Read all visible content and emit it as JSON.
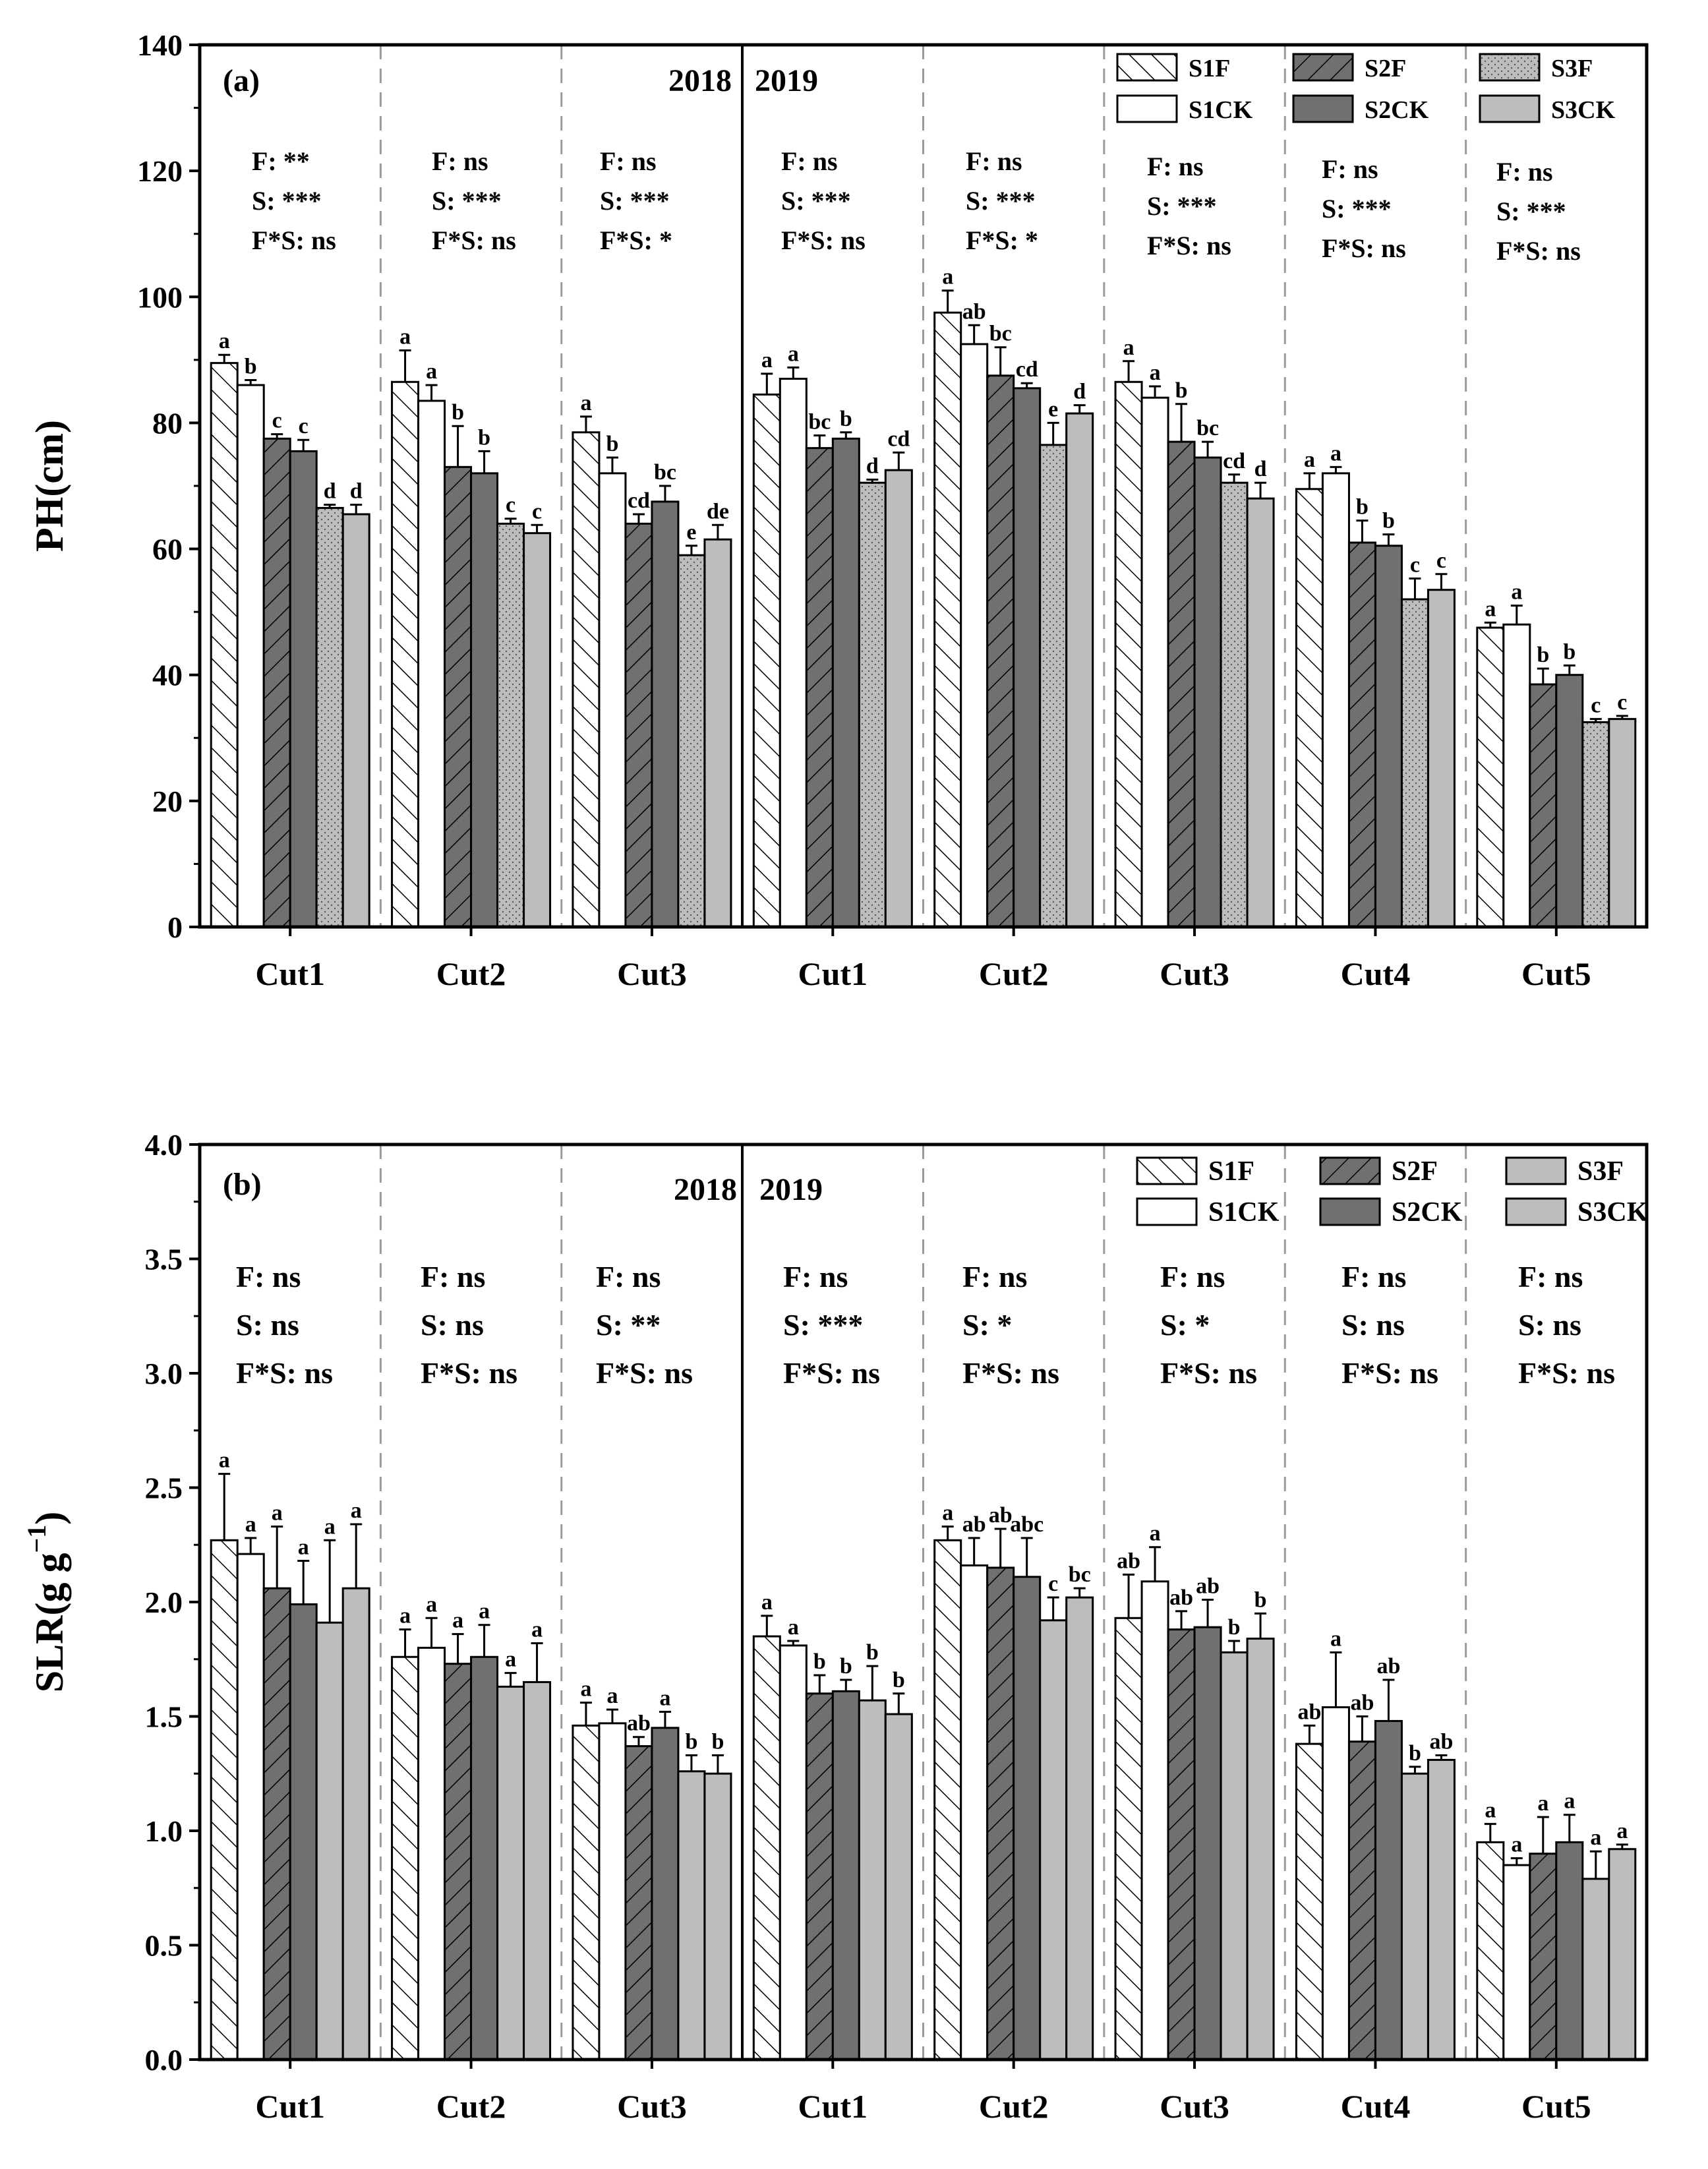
{
  "figure": {
    "panels": [
      {
        "label": "(a)",
        "ylabel": "PH(cm)",
        "ylabel_sup": "",
        "year_left": "2018",
        "year_right": "2019"
      },
      {
        "label": "(b)",
        "ylabel": "SLR(g g",
        "ylabel_sup": "−1",
        "ylabel_close": ")",
        "year_left": "2018",
        "year_right": "2019"
      }
    ],
    "legend": [
      "S1F",
      "S1CK",
      "S2F",
      "S2CK",
      "S3F",
      "S3CK"
    ]
  },
  "colors": {
    "S1": "#ffffff",
    "S2F": "#707070",
    "S2CK": "#707070",
    "S3F": "#bdbdbd",
    "S3CK": "#bdbdbd",
    "S3F_b": "#bdbdbd"
  },
  "chart_data": [
    {
      "type": "bar",
      "title": "(a)",
      "ylabel": "PH(cm)",
      "ylim": [
        0,
        140
      ],
      "yticks": [
        "0",
        "20",
        "40",
        "60",
        "80",
        "100",
        "120",
        "140"
      ],
      "series_names": [
        "S1F",
        "S1CK",
        "S2F",
        "S2CK",
        "S3F",
        "S3CK"
      ],
      "groups": [
        {
          "year": "2018",
          "cut": "Cut1",
          "values": [
            89.5,
            86,
            77.5,
            75.5,
            66.5,
            65.5
          ],
          "errors": [
            1.3,
            0.8,
            0.7,
            1.8,
            0.5,
            1.5
          ],
          "letters": [
            "a",
            "b",
            "c",
            "c",
            "d",
            "d"
          ],
          "stats": [
            "F: **",
            "S: ***",
            "F*S: ns"
          ]
        },
        {
          "year": "2018",
          "cut": "Cut2",
          "values": [
            86.5,
            83.5,
            73,
            72,
            64,
            62.5
          ],
          "errors": [
            5,
            2.5,
            6.5,
            3.5,
            0.8,
            1.3
          ],
          "letters": [
            "a",
            "a",
            "b",
            "b",
            "c",
            "c"
          ],
          "stats": [
            "F: ns",
            "S: ***",
            "F*S: ns"
          ]
        },
        {
          "year": "2018",
          "cut": "Cut3",
          "values": [
            78.5,
            72,
            64,
            67.5,
            59,
            61.5
          ],
          "errors": [
            2.5,
            2.5,
            1.5,
            2.5,
            1.5,
            2.3
          ],
          "letters": [
            "a",
            "b",
            "cd",
            "bc",
            "e",
            "de"
          ],
          "stats": [
            "F: ns",
            "S: ***",
            "F*S: *"
          ]
        },
        {
          "year": "2019",
          "cut": "Cut1",
          "values": [
            84.5,
            87,
            76,
            77.5,
            70.5,
            72.5
          ],
          "errors": [
            3.3,
            1.8,
            2,
            1,
            0.5,
            2.8
          ],
          "letters": [
            "a",
            "a",
            "bc",
            "b",
            "d",
            "cd"
          ],
          "stats": [
            "F: ns",
            "S: ***",
            "F*S: ns"
          ]
        },
        {
          "year": "2019",
          "cut": "Cut2",
          "values": [
            97.5,
            92.5,
            87.5,
            85.5,
            76.5,
            81.5
          ],
          "errors": [
            3.5,
            3,
            4.5,
            0.8,
            3.5,
            1.3
          ],
          "letters": [
            "a",
            "ab",
            "bc",
            "cd",
            "e",
            "d"
          ],
          "stats": [
            "F: ns",
            "S: ***",
            "F*S: *"
          ]
        },
        {
          "year": "2019",
          "cut": "Cut3",
          "values": [
            86.5,
            84,
            77,
            74.5,
            70.5,
            68
          ],
          "errors": [
            3.3,
            1.8,
            6,
            2.5,
            1.3,
            2.5
          ],
          "letters": [
            "a",
            "a",
            "b",
            "bc",
            "cd",
            "d"
          ],
          "stats": [
            "F: ns",
            "S: ***",
            "F*S: ns"
          ]
        },
        {
          "year": "2019",
          "cut": "Cut4",
          "values": [
            69.5,
            72,
            61,
            60.5,
            52,
            53.5
          ],
          "errors": [
            2.5,
            1,
            3.5,
            1.8,
            3.3,
            2.5
          ],
          "letters": [
            "a",
            "a",
            "b",
            "b",
            "c",
            "c"
          ],
          "stats": [
            "F: ns",
            "S: ***",
            "F*S: ns"
          ]
        },
        {
          "year": "2019",
          "cut": "Cut5",
          "values": [
            47.5,
            48,
            38.5,
            40,
            32.5,
            33
          ],
          "errors": [
            0.8,
            3,
            2.5,
            1.5,
            0.5,
            0.5
          ],
          "letters": [
            "a",
            "a",
            "b",
            "b",
            "c",
            "c"
          ],
          "stats": [
            "F: ns",
            "S: ***",
            "F*S: ns"
          ]
        }
      ]
    },
    {
      "type": "bar",
      "title": "(b)",
      "ylabel": "SLR(g g−1)",
      "ylim": [
        0,
        4
      ],
      "yticks": [
        "0.0",
        "0.5",
        "1.0",
        "1.5",
        "2.0",
        "2.5",
        "3.0",
        "3.5",
        "4.0"
      ],
      "series_names": [
        "S1F",
        "S1CK",
        "S2F",
        "S2CK",
        "S3F",
        "S3CK"
      ],
      "groups": [
        {
          "year": "2018",
          "cut": "Cut1",
          "values": [
            2.27,
            2.21,
            2.06,
            1.99,
            1.91,
            2.06
          ],
          "errors": [
            0.29,
            0.07,
            0.27,
            0.19,
            0.36,
            0.28
          ],
          "letters": [
            "a",
            "a",
            "a",
            "a",
            "a",
            "a"
          ],
          "stats": [
            "F: ns",
            "S: ns",
            "F*S: ns"
          ]
        },
        {
          "year": "2018",
          "cut": "Cut2",
          "values": [
            1.76,
            1.8,
            1.73,
            1.76,
            1.63,
            1.65
          ],
          "errors": [
            0.12,
            0.13,
            0.13,
            0.14,
            0.06,
            0.17
          ],
          "letters": [
            "a",
            "a",
            "a",
            "a",
            "a",
            "a"
          ],
          "stats": [
            "F: ns",
            "S: ns",
            "F*S: ns"
          ]
        },
        {
          "year": "2018",
          "cut": "Cut3",
          "values": [
            1.46,
            1.47,
            1.37,
            1.45,
            1.26,
            1.25
          ],
          "errors": [
            0.1,
            0.06,
            0.04,
            0.07,
            0.07,
            0.08
          ],
          "letters": [
            "a",
            "a",
            "ab",
            "a",
            "b",
            "b"
          ],
          "stats": [
            "F: ns",
            "S: **",
            "F*S: ns"
          ]
        },
        {
          "year": "2019",
          "cut": "Cut1",
          "values": [
            1.85,
            1.81,
            1.6,
            1.61,
            1.57,
            1.51
          ],
          "errors": [
            0.09,
            0.02,
            0.08,
            0.05,
            0.15,
            0.09
          ],
          "letters": [
            "a",
            "a",
            "b",
            "b",
            "b",
            "b"
          ],
          "stats": [
            "F: ns",
            "S: ***",
            "F*S: ns"
          ]
        },
        {
          "year": "2019",
          "cut": "Cut2",
          "values": [
            2.27,
            2.16,
            2.15,
            2.11,
            1.92,
            2.02
          ],
          "errors": [
            0.06,
            0.12,
            0.17,
            0.17,
            0.1,
            0.04
          ],
          "letters": [
            "a",
            "ab",
            "ab",
            "abc",
            "c",
            "bc"
          ],
          "stats": [
            "F: ns",
            "S: *",
            "F*S: ns"
          ]
        },
        {
          "year": "2019",
          "cut": "Cut3",
          "values": [
            1.93,
            2.09,
            1.88,
            1.89,
            1.78,
            1.84
          ],
          "errors": [
            0.19,
            0.15,
            0.08,
            0.12,
            0.05,
            0.11
          ],
          "letters": [
            "ab",
            "a",
            "ab",
            "ab",
            "b",
            "b"
          ],
          "stats": [
            "F: ns",
            "S: *",
            "F*S: ns"
          ]
        },
        {
          "year": "2019",
          "cut": "Cut4",
          "values": [
            1.38,
            1.54,
            1.39,
            1.48,
            1.25,
            1.31
          ],
          "errors": [
            0.08,
            0.24,
            0.11,
            0.18,
            0.03,
            0.02
          ],
          "letters": [
            "ab",
            "a",
            "ab",
            "ab",
            "b",
            "ab"
          ],
          "stats": [
            "F: ns",
            "S: ns",
            "F*S: ns"
          ]
        },
        {
          "year": "2019",
          "cut": "Cut5",
          "values": [
            0.95,
            0.85,
            0.9,
            0.95,
            0.79,
            0.92
          ],
          "errors": [
            0.08,
            0.03,
            0.16,
            0.12,
            0.12,
            0.02
          ],
          "letters": [
            "a",
            "a",
            "a",
            "a",
            "a",
            "a"
          ],
          "stats": [
            "F: ns",
            "S: ns",
            "F*S: ns"
          ]
        }
      ]
    }
  ]
}
